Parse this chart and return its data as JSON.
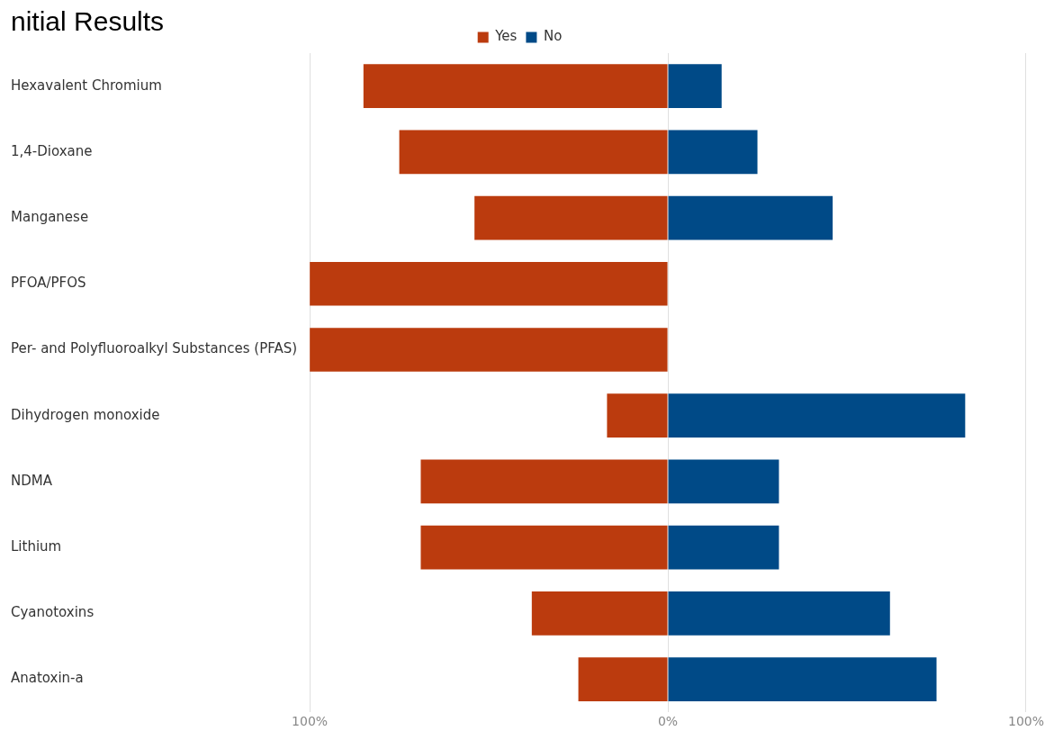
{
  "chart_data": {
    "type": "bar",
    "orientation": "horizontal",
    "stacked": true,
    "title": "nitial Results",
    "categories": [
      "Hexavalent Chromium",
      "1,4-Dioxane",
      "Manganese",
      "PFOA/PFOS",
      "Per- and Polyfluoroalkyl Substances (PFAS)",
      "Dihydrogen monoxide",
      "NDMA",
      "Lithium",
      "Cyanotoxins",
      "Anatoxin-a"
    ],
    "series": [
      {
        "name": "Yes",
        "color": "#bb3b0e",
        "values": [
          -85,
          -75,
          -54,
          -100,
          -100,
          -17,
          -69,
          -69,
          -38,
          -25
        ]
      },
      {
        "name": "No",
        "color": "#004a87",
        "values": [
          15,
          25,
          46,
          0,
          0,
          83,
          31,
          31,
          62,
          75
        ]
      }
    ],
    "xlim": [
      -100,
      100
    ],
    "xticks": [
      {
        "value": -100,
        "label": "100%"
      },
      {
        "value": 0,
        "label": "0%"
      },
      {
        "value": 100,
        "label": "100%"
      }
    ],
    "grid": "x",
    "legend": "top"
  }
}
